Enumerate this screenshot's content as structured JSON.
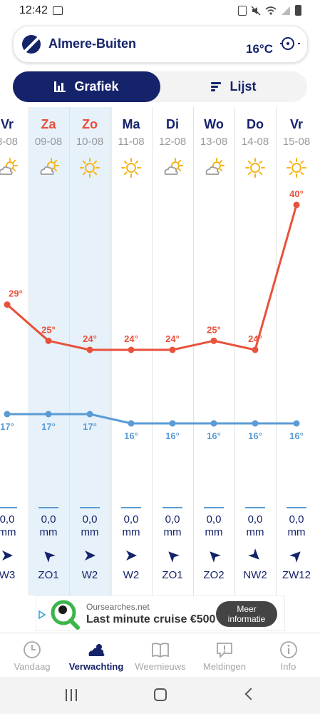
{
  "status_bar": {
    "time": "12:42"
  },
  "location": {
    "name": "Almere-Buiten",
    "current_temp": "16°C"
  },
  "view_toggle": {
    "chart_label": "Grafiek",
    "list_label": "Lijst",
    "active": "Grafiek"
  },
  "colors": {
    "brand": "#15236b",
    "max_temp": "#e8513c",
    "min_temp": "#5a9bd5",
    "weekend_bg": "#e6f1f9"
  },
  "days": [
    {
      "name": "Vr",
      "date": "8-08",
      "weekend": false,
      "icon": "partly-cloudy-icon",
      "max": 29,
      "max_label": "29°",
      "min": 17,
      "min_label": "17°",
      "precip": "0,0",
      "precip_unit": "mm",
      "wind_dir_deg": 90,
      "wind": "W3"
    },
    {
      "name": "Za",
      "date": "09-08",
      "weekend": true,
      "icon": "partly-cloudy-icon",
      "max": 25,
      "max_label": "25°",
      "min": 17,
      "min_label": "17°",
      "precip": "0,0",
      "precip_unit": "mm",
      "wind_dir_deg": 315,
      "wind": "ZO1"
    },
    {
      "name": "Zo",
      "date": "10-08",
      "weekend": true,
      "icon": "sun-icon",
      "max": 24,
      "max_label": "24°",
      "min": 17,
      "min_label": "17°",
      "precip": "0,0",
      "precip_unit": "mm",
      "wind_dir_deg": 90,
      "wind": "W2"
    },
    {
      "name": "Ma",
      "date": "11-08",
      "weekend": false,
      "icon": "sun-icon",
      "max": 24,
      "max_label": "24°",
      "min": 16,
      "min_label": "16°",
      "precip": "0,0",
      "precip_unit": "mm",
      "wind_dir_deg": 90,
      "wind": "W2"
    },
    {
      "name": "Di",
      "date": "12-08",
      "weekend": false,
      "icon": "partly-cloudy-icon",
      "max": 24,
      "max_label": "24°",
      "min": 16,
      "min_label": "16°",
      "precip": "0,0",
      "precip_unit": "mm",
      "wind_dir_deg": 315,
      "wind": "ZO1"
    },
    {
      "name": "Wo",
      "date": "13-08",
      "weekend": false,
      "icon": "partly-cloudy-icon",
      "max": 25,
      "max_label": "25°",
      "min": 16,
      "min_label": "16°",
      "precip": "0,0",
      "precip_unit": "mm",
      "wind_dir_deg": 315,
      "wind": "ZO2"
    },
    {
      "name": "Do",
      "date": "14-08",
      "weekend": false,
      "icon": "sun-icon",
      "max": 24,
      "max_label": "24°",
      "min": 16,
      "min_label": "16°",
      "precip": "0,0",
      "precip_unit": "mm",
      "wind_dir_deg": 135,
      "wind": "NW2"
    },
    {
      "name": "Vr",
      "date": "15-08",
      "weekend": false,
      "icon": "sun-icon",
      "max": 40,
      "max_label": "40°",
      "min": 16,
      "min_label": "16°",
      "precip": "0,0",
      "precip_unit": "mm",
      "wind_dir_deg": 45,
      "wind": "ZW12"
    }
  ],
  "ad": {
    "domain": "Oursearches.net",
    "title": "Last minute cruise €500",
    "button_line1": "Meer",
    "button_line2": "informatie"
  },
  "bottom_nav": [
    {
      "label": "Vandaag",
      "icon": "clock-icon",
      "active": false
    },
    {
      "label": "Verwachting",
      "icon": "weather-icon",
      "active": true
    },
    {
      "label": "Weernieuws",
      "icon": "book-icon",
      "active": false
    },
    {
      "label": "Meldingen",
      "icon": "alert-bubble-icon",
      "active": false
    },
    {
      "label": "Info",
      "icon": "info-icon",
      "active": false
    }
  ]
}
